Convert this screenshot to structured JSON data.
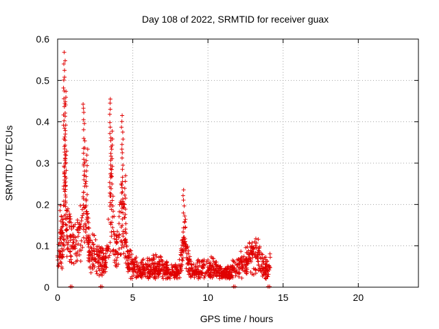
{
  "chart_data": {
    "type": "scatter",
    "title": "Day 108 of 2022, SRMTID for receiver guax",
    "xlabel": "GPS time / hours",
    "ylabel": "SRMTID / TECUs",
    "xlim": [
      0,
      24
    ],
    "ylim": [
      0,
      0.6
    ],
    "x_ticks": [
      0,
      5,
      10,
      15,
      20
    ],
    "x_tick_labels": [
      "0",
      "5",
      "10",
      "15",
      "20"
    ],
    "y_ticks": [
      0,
      0.1,
      0.2,
      0.3,
      0.4,
      0.5,
      0.6
    ],
    "y_tick_labels": [
      "0",
      "0.1",
      "0.2",
      "0.3",
      "0.4",
      "0.5",
      "0.6"
    ],
    "grid": true,
    "marker": "plus",
    "color": "#e00000",
    "profile": [
      [
        0.0,
        0.1
      ],
      [
        0.15,
        0.13
      ],
      [
        0.3,
        0.15
      ],
      [
        0.45,
        0.25
      ],
      [
        0.5,
        0.4
      ],
      [
        0.6,
        0.2
      ],
      [
        0.8,
        0.18
      ],
      [
        1.0,
        0.16
      ],
      [
        1.2,
        0.18
      ],
      [
        1.4,
        0.16
      ],
      [
        1.6,
        0.22
      ],
      [
        1.75,
        0.35
      ],
      [
        1.9,
        0.25
      ],
      [
        2.1,
        0.13
      ],
      [
        2.4,
        0.12
      ],
      [
        2.7,
        0.1
      ],
      [
        3.0,
        0.09
      ],
      [
        3.2,
        0.08
      ],
      [
        3.4,
        0.18
      ],
      [
        3.6,
        0.3
      ],
      [
        3.8,
        0.12
      ],
      [
        4.0,
        0.14
      ],
      [
        4.2,
        0.25
      ],
      [
        4.4,
        0.22
      ],
      [
        4.7,
        0.09
      ],
      [
        5.0,
        0.07
      ],
      [
        5.5,
        0.06
      ],
      [
        6.0,
        0.06
      ],
      [
        6.5,
        0.07
      ],
      [
        7.0,
        0.06
      ],
      [
        7.5,
        0.05
      ],
      [
        8.0,
        0.05
      ],
      [
        8.3,
        0.12
      ],
      [
        8.5,
        0.18
      ],
      [
        8.7,
        0.09
      ],
      [
        9.0,
        0.05
      ],
      [
        9.5,
        0.06
      ],
      [
        10.0,
        0.07
      ],
      [
        10.5,
        0.06
      ],
      [
        11.0,
        0.04
      ],
      [
        11.5,
        0.05
      ],
      [
        12.0,
        0.07
      ],
      [
        12.5,
        0.09
      ],
      [
        13.0,
        0.11
      ],
      [
        13.3,
        0.12
      ],
      [
        13.6,
        0.08
      ],
      [
        14.0,
        0.06
      ],
      [
        14.15,
        0.07
      ]
    ],
    "spikes": [
      [
        0.45,
        0.57
      ],
      [
        0.5,
        0.48
      ],
      [
        1.75,
        0.45
      ],
      [
        3.5,
        0.46
      ],
      [
        4.3,
        0.42
      ],
      [
        3.6,
        0.38
      ],
      [
        1.95,
        0.34
      ],
      [
        0.55,
        0.33
      ],
      [
        4.5,
        0.27
      ],
      [
        8.4,
        0.24
      ],
      [
        0.2,
        0.2
      ],
      [
        0.3,
        0.18
      ]
    ],
    "baseline_x": [
      0.85,
      0.95,
      2.85,
      2.95,
      11.7,
      11.8,
      14.0,
      14.1
    ]
  }
}
